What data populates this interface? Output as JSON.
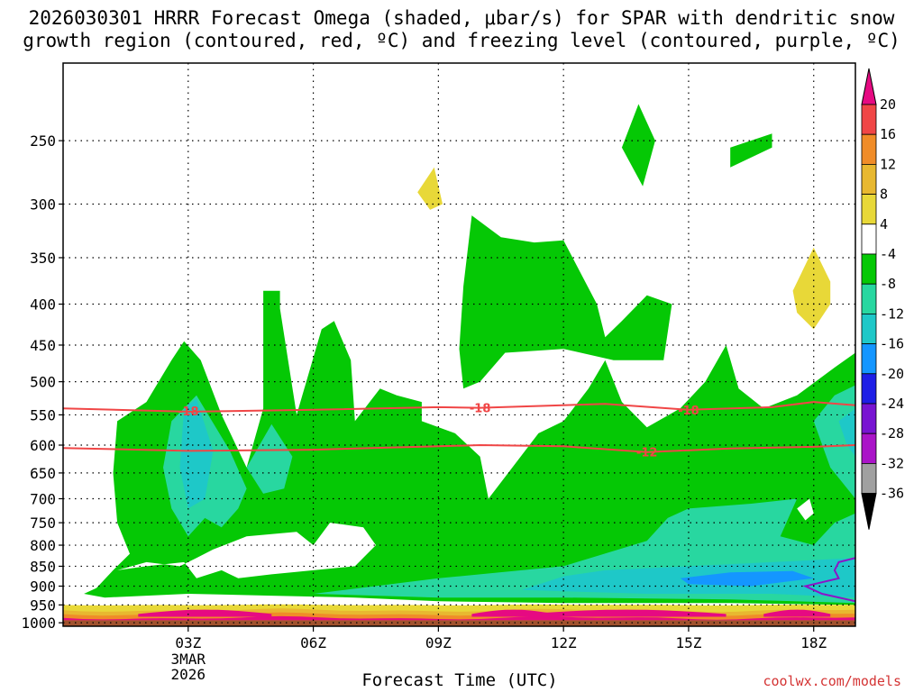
{
  "header": {
    "title_line1": "2026030301 HRRR Forecast Omega (shaded, μbar/s) for SPAR with dendritic snow",
    "title_line2": "growth region (contoured, red, ºC) and freezing level (contoured, purple, ºC)"
  },
  "footer": {
    "xlabel": "Forecast Time (UTC)",
    "credit": "coolwx.com/models"
  },
  "colors": {
    "omega_shades": {
      "0_to_4": "#ffffff",
      "4_to_8": "#e8d838",
      "-4_to_-8": "#05c805",
      "-8_to_-12": "#28d7a0",
      "-12_to_-16": "#1ec8c8",
      "-16_to_-20": "#1496ff",
      "-20_to_-24": "#1e1ee6",
      "-24_to_-28": "#7814d2",
      "-28_to_-32": "#aa14c8",
      "-32_to_-36": "#a0a0a0",
      "lt_-36": "#000000",
      "8_to_12": "#e8b830",
      "12_to_16": "#f08c28",
      "16_to_20": "#f04646",
      "gt_20": "#e60a82"
    },
    "dgz_contour": "#f04646",
    "freezing_contour": "#8c14c8",
    "terrain": "#a0522d"
  },
  "chart_data": {
    "type": "heatmap",
    "title": "2026030301 HRRR Forecast Omega (shaded, μbar/s) for SPAR with dendritic snow growth region (contoured, red, ºC) and freezing level (contoured, purple, ºC)",
    "xlabel": "Forecast Time (UTC)",
    "ylabel": "",
    "y_scale": "log-pressure (hPa), inverted",
    "y_range": [
      1010,
      200
    ],
    "x_range_hours": [
      0,
      19
    ],
    "x_ticks": [
      {
        "hour": 3,
        "label": "03Z",
        "sublabels": [
          "3MAR",
          "2026"
        ]
      },
      {
        "hour": 6,
        "label": "06Z",
        "sublabels": []
      },
      {
        "hour": 9,
        "label": "09Z",
        "sublabels": []
      },
      {
        "hour": 12,
        "label": "12Z",
        "sublabels": []
      },
      {
        "hour": 15,
        "label": "15Z",
        "sublabels": []
      },
      {
        "hour": 18,
        "label": "18Z",
        "sublabels": []
      }
    ],
    "y_ticks": [
      {
        "p": 250,
        "label": "250"
      },
      {
        "p": 300,
        "label": "300"
      },
      {
        "p": 350,
        "label": "350"
      },
      {
        "p": 400,
        "label": "400"
      },
      {
        "p": 450,
        "label": "450"
      },
      {
        "p": 500,
        "label": "500"
      },
      {
        "p": 550,
        "label": "550"
      },
      {
        "p": 600,
        "label": "600"
      },
      {
        "p": 650,
        "label": "650"
      },
      {
        "p": 700,
        "label": "700"
      },
      {
        "p": 750,
        "label": "750"
      },
      {
        "p": 800,
        "label": "800"
      },
      {
        "p": 850,
        "label": "850"
      },
      {
        "p": 900,
        "label": "900"
      },
      {
        "p": 950,
        "label": "950"
      },
      {
        "p": 1000,
        "label": "1000"
      }
    ],
    "grid": true,
    "colorbar": {
      "labels": [
        "20",
        "16",
        "12",
        "8",
        "4",
        "-4",
        "-8",
        "-12",
        "-16",
        "-20",
        "-24",
        "-28",
        "-32",
        "-36"
      ],
      "bands_top_to_bottom": [
        "#f04646",
        "#f08c28",
        "#e8b830",
        "#e8d838",
        "#ffffff",
        "#05c805",
        "#28d7a0",
        "#1ec8c8",
        "#1496ff",
        "#1e1ee6",
        "#7814d2",
        "#aa14c8",
        "#a0a0a0"
      ],
      "top_arrow": "#e60a82",
      "bottom_arrow": "#000000"
    },
    "contours": [
      {
        "name": "-18",
        "color": "#f04646",
        "points": [
          [
            0,
            540
          ],
          [
            3,
            545
          ],
          [
            6,
            542
          ],
          [
            9,
            538
          ],
          [
            10,
            539
          ],
          [
            13,
            533
          ],
          [
            15,
            542
          ],
          [
            17,
            538
          ],
          [
            18,
            530
          ],
          [
            19,
            535
          ]
        ],
        "labels": [
          {
            "hour": 3.0,
            "p": 544,
            "text": "-18"
          },
          {
            "hour": 10.0,
            "p": 539,
            "text": "-18"
          },
          {
            "hour": 15.0,
            "p": 542,
            "text": "-18"
          }
        ]
      },
      {
        "name": "-12",
        "color": "#f04646",
        "points": [
          [
            0,
            605
          ],
          [
            3,
            610
          ],
          [
            6,
            608
          ],
          [
            9,
            602
          ],
          [
            10,
            600
          ],
          [
            12,
            602
          ],
          [
            14,
            612
          ],
          [
            16,
            606
          ],
          [
            18,
            603
          ],
          [
            19,
            600
          ]
        ],
        "labels": [
          {
            "hour": 14.0,
            "p": 612,
            "text": "-12"
          }
        ]
      },
      {
        "name": "0",
        "color": "#8c14c8",
        "points": [
          [
            19,
            830
          ],
          [
            18.6,
            840
          ],
          [
            18.5,
            860
          ],
          [
            18.6,
            880
          ],
          [
            17.8,
            900
          ],
          [
            18.2,
            920
          ],
          [
            19,
            940
          ]
        ],
        "labels": []
      }
    ],
    "shaded_regions": [
      {
        "level": "-4_to_-8",
        "polygon": [
          [
            0.8,
            905
          ],
          [
            1.2,
            860
          ],
          [
            1.6,
            820
          ],
          [
            1.3,
            750
          ],
          [
            1.2,
            650
          ],
          [
            1.3,
            560
          ],
          [
            2.0,
            530
          ],
          [
            2.6,
            470
          ],
          [
            2.9,
            445
          ],
          [
            3.3,
            470
          ],
          [
            3.8,
            550
          ],
          [
            4.4,
            640
          ],
          [
            4.6,
            700
          ],
          [
            4.4,
            640
          ],
          [
            4.8,
            540
          ],
          [
            4.8,
            385
          ],
          [
            5.2,
            385
          ],
          [
            5.2,
            405
          ],
          [
            5.6,
            550
          ],
          [
            6.2,
            430
          ],
          [
            6.5,
            420
          ],
          [
            6.9,
            470
          ],
          [
            7.0,
            560
          ],
          [
            7.6,
            510
          ],
          [
            8.0,
            520
          ],
          [
            8.6,
            530
          ],
          [
            8.6,
            560
          ],
          [
            9.4,
            580
          ],
          [
            10.0,
            620
          ],
          [
            10.2,
            700
          ],
          [
            11.4,
            580
          ],
          [
            12.0,
            560
          ],
          [
            12.6,
            510
          ],
          [
            13.0,
            470
          ],
          [
            13.4,
            530
          ],
          [
            14.0,
            570
          ],
          [
            14.8,
            540
          ],
          [
            15.4,
            500
          ],
          [
            15.9,
            450
          ],
          [
            16.2,
            510
          ],
          [
            16.8,
            540
          ],
          [
            17.6,
            520
          ],
          [
            18.5,
            480
          ],
          [
            19.0,
            460
          ],
          [
            19.0,
            950
          ],
          [
            16.0,
            945
          ],
          [
            12.0,
            945
          ],
          [
            9.0,
            940
          ],
          [
            7.0,
            930
          ],
          [
            5.0,
            925
          ],
          [
            3.0,
            920
          ],
          [
            2.0,
            925
          ],
          [
            1.0,
            930
          ],
          [
            0.5,
            920
          ]
        ]
      },
      {
        "level": "-4_to_-8",
        "polygon": [
          [
            9.8,
            310
          ],
          [
            10.5,
            330
          ],
          [
            11.3,
            335
          ],
          [
            12.0,
            333
          ],
          [
            12.8,
            400
          ],
          [
            13.0,
            440
          ],
          [
            13.4,
            420
          ],
          [
            14.0,
            390
          ],
          [
            14.6,
            400
          ],
          [
            14.4,
            470
          ],
          [
            13.2,
            470
          ],
          [
            12.0,
            455
          ],
          [
            10.6,
            460
          ],
          [
            10.0,
            500
          ],
          [
            9.6,
            510
          ],
          [
            9.5,
            455
          ],
          [
            9.6,
            380
          ]
        ]
      },
      {
        "level": "-4_to_-8",
        "polygon": [
          [
            13.8,
            225
          ],
          [
            14.2,
            250
          ],
          [
            13.9,
            285
          ],
          [
            13.4,
            255
          ]
        ]
      },
      {
        "level": "-4_to_-8",
        "polygon": [
          [
            16.0,
            255
          ],
          [
            17.0,
            245
          ],
          [
            17.0,
            255
          ],
          [
            16.0,
            270
          ]
        ]
      },
      {
        "level": "4_to_8",
        "polygon": [
          [
            8.5,
            290
          ],
          [
            8.9,
            270
          ],
          [
            9.1,
            300
          ],
          [
            8.8,
            305
          ]
        ]
      },
      {
        "level": "4_to_8",
        "polygon": [
          [
            18.0,
            340
          ],
          [
            18.4,
            375
          ],
          [
            18.4,
            400
          ],
          [
            18.0,
            430
          ],
          [
            17.6,
            410
          ],
          [
            17.5,
            385
          ]
        ]
      },
      {
        "level": "-8_to_-12",
        "polygon": [
          [
            2.6,
            560
          ],
          [
            3.2,
            520
          ],
          [
            4.0,
            610
          ],
          [
            4.4,
            680
          ],
          [
            4.2,
            720
          ],
          [
            3.8,
            760
          ],
          [
            3.4,
            740
          ],
          [
            3.0,
            780
          ],
          [
            2.6,
            720
          ],
          [
            2.4,
            640
          ]
        ]
      },
      {
        "level": "-8_to_-12",
        "polygon": [
          [
            4.4,
            640
          ],
          [
            5.0,
            565
          ],
          [
            5.5,
            620
          ],
          [
            5.3,
            680
          ],
          [
            4.8,
            690
          ]
        ]
      },
      {
        "level": "-8_to_-12",
        "polygon": [
          [
            6.0,
            920
          ],
          [
            9.0,
            880
          ],
          [
            12.0,
            850
          ],
          [
            14.0,
            790
          ],
          [
            14.5,
            740
          ],
          [
            15.0,
            720
          ],
          [
            16.5,
            710
          ],
          [
            17.6,
            700
          ],
          [
            17.2,
            780
          ],
          [
            18.0,
            800
          ],
          [
            18.5,
            750
          ],
          [
            19.0,
            730
          ],
          [
            19.0,
            945
          ],
          [
            16.0,
            935
          ],
          [
            12.0,
            930
          ],
          [
            9.0,
            930
          ]
        ]
      },
      {
        "level": "-8_to_-12",
        "polygon": [
          [
            18.0,
            560
          ],
          [
            18.5,
            520
          ],
          [
            19.0,
            505
          ],
          [
            19.0,
            700
          ],
          [
            18.4,
            640
          ]
        ]
      },
      {
        "level": "-12_to_-16",
        "polygon": [
          [
            2.9,
            540
          ],
          [
            3.2,
            525
          ],
          [
            3.6,
            610
          ],
          [
            3.4,
            700
          ],
          [
            3.0,
            720
          ],
          [
            2.8,
            640
          ]
        ]
      },
      {
        "level": "-12_to_-16",
        "polygon": [
          [
            12.0,
            875
          ],
          [
            13.0,
            860
          ],
          [
            15.0,
            850
          ],
          [
            17.0,
            840
          ],
          [
            19.0,
            830
          ],
          [
            19.0,
            930
          ],
          [
            17.0,
            920
          ],
          [
            14.0,
            920
          ],
          [
            11.0,
            910
          ]
        ]
      },
      {
        "level": "-12_to_-16",
        "polygon": [
          [
            18.6,
            560
          ],
          [
            19.0,
            540
          ],
          [
            19.0,
            620
          ],
          [
            18.8,
            600
          ]
        ]
      },
      {
        "level": "-16_to_-20",
        "polygon": [
          [
            14.8,
            880
          ],
          [
            16.0,
            865
          ],
          [
            17.5,
            862
          ],
          [
            18.0,
            880
          ],
          [
            16.5,
            900
          ],
          [
            15.0,
            895
          ]
        ]
      },
      {
        "level": "0_to_4",
        "polygon": [
          [
            1.3,
            860
          ],
          [
            2.0,
            840
          ],
          [
            2.8,
            850
          ],
          [
            3.2,
            830
          ],
          [
            3.6,
            810
          ],
          [
            4.4,
            780
          ],
          [
            5.6,
            770
          ],
          [
            6.0,
            800
          ],
          [
            6.4,
            750
          ],
          [
            7.2,
            760
          ],
          [
            7.5,
            800
          ],
          [
            7.0,
            850
          ],
          [
            5.0,
            870
          ],
          [
            4.2,
            880
          ],
          [
            3.8,
            860
          ],
          [
            3.2,
            880
          ],
          [
            2.9,
            840
          ],
          [
            2.0,
            850
          ]
        ]
      },
      {
        "level": "0_to_4",
        "polygon": [
          [
            17.6,
            720
          ],
          [
            17.9,
            700
          ],
          [
            18.0,
            730
          ],
          [
            17.8,
            745
          ]
        ]
      }
    ],
    "surface_band": {
      "levels_bottom_to_top": [
        "4_to_8",
        "8_to_12",
        "12_to_16",
        "gt_20"
      ],
      "p_top": 950
    },
    "terrain_top_p": 993
  }
}
